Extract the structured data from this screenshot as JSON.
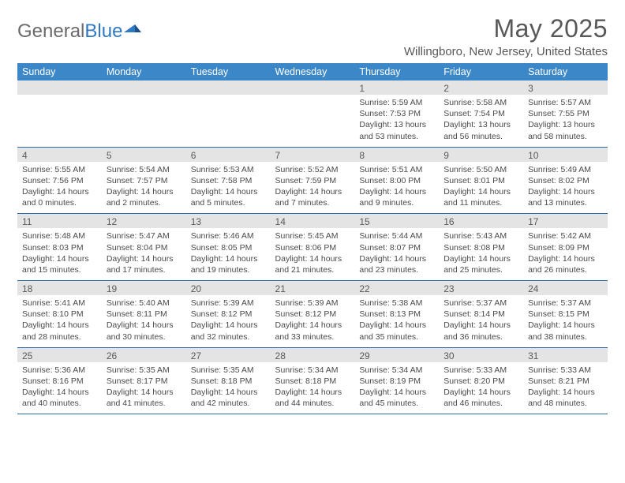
{
  "logo": {
    "text_gray": "General",
    "text_blue": "Blue"
  },
  "title": "May 2025",
  "location": "Willingboro, New Jersey, United States",
  "colors": {
    "header_bg": "#3b87c8",
    "header_text": "#ffffff",
    "daynum_bg": "#e4e4e4",
    "row_border": "#2f6aa8",
    "body_text": "#4a4a4a",
    "title_text": "#585858",
    "logo_gray": "#6a6a6a",
    "logo_blue": "#2f78c4"
  },
  "weekdays": [
    "Sunday",
    "Monday",
    "Tuesday",
    "Wednesday",
    "Thursday",
    "Friday",
    "Saturday"
  ],
  "weeks": [
    [
      {
        "day": "",
        "sunrise": "",
        "sunset": "",
        "daylight": ""
      },
      {
        "day": "",
        "sunrise": "",
        "sunset": "",
        "daylight": ""
      },
      {
        "day": "",
        "sunrise": "",
        "sunset": "",
        "daylight": ""
      },
      {
        "day": "",
        "sunrise": "",
        "sunset": "",
        "daylight": ""
      },
      {
        "day": "1",
        "sunrise": "Sunrise: 5:59 AM",
        "sunset": "Sunset: 7:53 PM",
        "daylight": "Daylight: 13 hours and 53 minutes."
      },
      {
        "day": "2",
        "sunrise": "Sunrise: 5:58 AM",
        "sunset": "Sunset: 7:54 PM",
        "daylight": "Daylight: 13 hours and 56 minutes."
      },
      {
        "day": "3",
        "sunrise": "Sunrise: 5:57 AM",
        "sunset": "Sunset: 7:55 PM",
        "daylight": "Daylight: 13 hours and 58 minutes."
      }
    ],
    [
      {
        "day": "4",
        "sunrise": "Sunrise: 5:55 AM",
        "sunset": "Sunset: 7:56 PM",
        "daylight": "Daylight: 14 hours and 0 minutes."
      },
      {
        "day": "5",
        "sunrise": "Sunrise: 5:54 AM",
        "sunset": "Sunset: 7:57 PM",
        "daylight": "Daylight: 14 hours and 2 minutes."
      },
      {
        "day": "6",
        "sunrise": "Sunrise: 5:53 AM",
        "sunset": "Sunset: 7:58 PM",
        "daylight": "Daylight: 14 hours and 5 minutes."
      },
      {
        "day": "7",
        "sunrise": "Sunrise: 5:52 AM",
        "sunset": "Sunset: 7:59 PM",
        "daylight": "Daylight: 14 hours and 7 minutes."
      },
      {
        "day": "8",
        "sunrise": "Sunrise: 5:51 AM",
        "sunset": "Sunset: 8:00 PM",
        "daylight": "Daylight: 14 hours and 9 minutes."
      },
      {
        "day": "9",
        "sunrise": "Sunrise: 5:50 AM",
        "sunset": "Sunset: 8:01 PM",
        "daylight": "Daylight: 14 hours and 11 minutes."
      },
      {
        "day": "10",
        "sunrise": "Sunrise: 5:49 AM",
        "sunset": "Sunset: 8:02 PM",
        "daylight": "Daylight: 14 hours and 13 minutes."
      }
    ],
    [
      {
        "day": "11",
        "sunrise": "Sunrise: 5:48 AM",
        "sunset": "Sunset: 8:03 PM",
        "daylight": "Daylight: 14 hours and 15 minutes."
      },
      {
        "day": "12",
        "sunrise": "Sunrise: 5:47 AM",
        "sunset": "Sunset: 8:04 PM",
        "daylight": "Daylight: 14 hours and 17 minutes."
      },
      {
        "day": "13",
        "sunrise": "Sunrise: 5:46 AM",
        "sunset": "Sunset: 8:05 PM",
        "daylight": "Daylight: 14 hours and 19 minutes."
      },
      {
        "day": "14",
        "sunrise": "Sunrise: 5:45 AM",
        "sunset": "Sunset: 8:06 PM",
        "daylight": "Daylight: 14 hours and 21 minutes."
      },
      {
        "day": "15",
        "sunrise": "Sunrise: 5:44 AM",
        "sunset": "Sunset: 8:07 PM",
        "daylight": "Daylight: 14 hours and 23 minutes."
      },
      {
        "day": "16",
        "sunrise": "Sunrise: 5:43 AM",
        "sunset": "Sunset: 8:08 PM",
        "daylight": "Daylight: 14 hours and 25 minutes."
      },
      {
        "day": "17",
        "sunrise": "Sunrise: 5:42 AM",
        "sunset": "Sunset: 8:09 PM",
        "daylight": "Daylight: 14 hours and 26 minutes."
      }
    ],
    [
      {
        "day": "18",
        "sunrise": "Sunrise: 5:41 AM",
        "sunset": "Sunset: 8:10 PM",
        "daylight": "Daylight: 14 hours and 28 minutes."
      },
      {
        "day": "19",
        "sunrise": "Sunrise: 5:40 AM",
        "sunset": "Sunset: 8:11 PM",
        "daylight": "Daylight: 14 hours and 30 minutes."
      },
      {
        "day": "20",
        "sunrise": "Sunrise: 5:39 AM",
        "sunset": "Sunset: 8:12 PM",
        "daylight": "Daylight: 14 hours and 32 minutes."
      },
      {
        "day": "21",
        "sunrise": "Sunrise: 5:39 AM",
        "sunset": "Sunset: 8:12 PM",
        "daylight": "Daylight: 14 hours and 33 minutes."
      },
      {
        "day": "22",
        "sunrise": "Sunrise: 5:38 AM",
        "sunset": "Sunset: 8:13 PM",
        "daylight": "Daylight: 14 hours and 35 minutes."
      },
      {
        "day": "23",
        "sunrise": "Sunrise: 5:37 AM",
        "sunset": "Sunset: 8:14 PM",
        "daylight": "Daylight: 14 hours and 36 minutes."
      },
      {
        "day": "24",
        "sunrise": "Sunrise: 5:37 AM",
        "sunset": "Sunset: 8:15 PM",
        "daylight": "Daylight: 14 hours and 38 minutes."
      }
    ],
    [
      {
        "day": "25",
        "sunrise": "Sunrise: 5:36 AM",
        "sunset": "Sunset: 8:16 PM",
        "daylight": "Daylight: 14 hours and 40 minutes."
      },
      {
        "day": "26",
        "sunrise": "Sunrise: 5:35 AM",
        "sunset": "Sunset: 8:17 PM",
        "daylight": "Daylight: 14 hours and 41 minutes."
      },
      {
        "day": "27",
        "sunrise": "Sunrise: 5:35 AM",
        "sunset": "Sunset: 8:18 PM",
        "daylight": "Daylight: 14 hours and 42 minutes."
      },
      {
        "day": "28",
        "sunrise": "Sunrise: 5:34 AM",
        "sunset": "Sunset: 8:18 PM",
        "daylight": "Daylight: 14 hours and 44 minutes."
      },
      {
        "day": "29",
        "sunrise": "Sunrise: 5:34 AM",
        "sunset": "Sunset: 8:19 PM",
        "daylight": "Daylight: 14 hours and 45 minutes."
      },
      {
        "day": "30",
        "sunrise": "Sunrise: 5:33 AM",
        "sunset": "Sunset: 8:20 PM",
        "daylight": "Daylight: 14 hours and 46 minutes."
      },
      {
        "day": "31",
        "sunrise": "Sunrise: 5:33 AM",
        "sunset": "Sunset: 8:21 PM",
        "daylight": "Daylight: 14 hours and 48 minutes."
      }
    ]
  ]
}
